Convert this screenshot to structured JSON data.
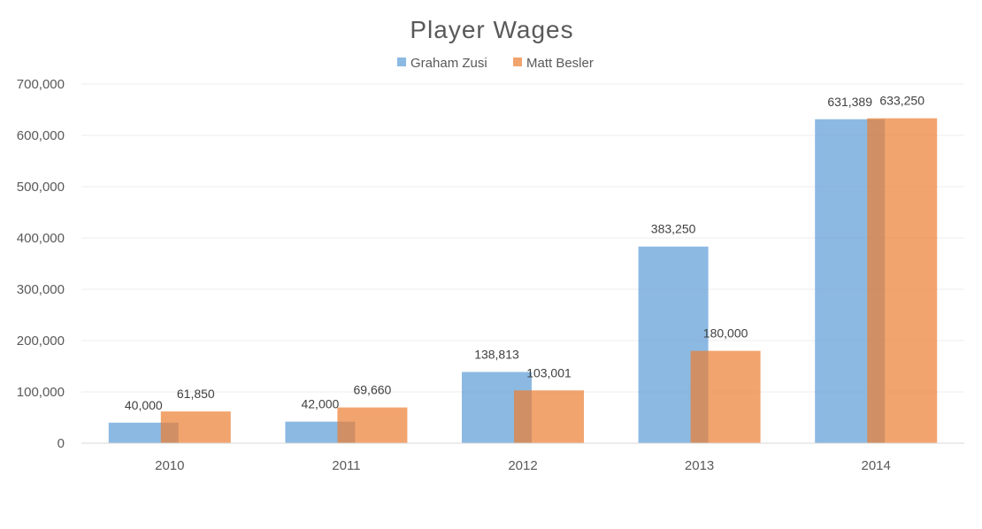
{
  "chart_data": {
    "type": "bar",
    "title": "Player Wages",
    "xlabel": "",
    "ylabel": "",
    "categories": [
      "2010",
      "2011",
      "2012",
      "2013",
      "2014"
    ],
    "series": [
      {
        "name": "Graham Zusi",
        "color": "#5B9BD5",
        "values": [
          40000,
          42000,
          138813,
          383250,
          631389
        ],
        "labels": [
          "40,000",
          "42,000",
          "138,813",
          "383,250",
          "631,389"
        ]
      },
      {
        "name": "Matt Besler",
        "color": "#ED7D31",
        "values": [
          61850,
          69660,
          103001,
          180000,
          633250
        ],
        "labels": [
          "61,850",
          "69,660",
          "103,001",
          "180,000",
          "633,250"
        ]
      }
    ],
    "ylim": [
      0,
      700000
    ],
    "yticks": [
      0,
      100000,
      200000,
      300000,
      400000,
      500000,
      600000,
      700000
    ],
    "ytick_labels": [
      "0",
      "100,000",
      "200,000",
      "300,000",
      "400,000",
      "500,000",
      "600,000",
      "700,000"
    ],
    "grid": true,
    "legend": "top-center"
  }
}
